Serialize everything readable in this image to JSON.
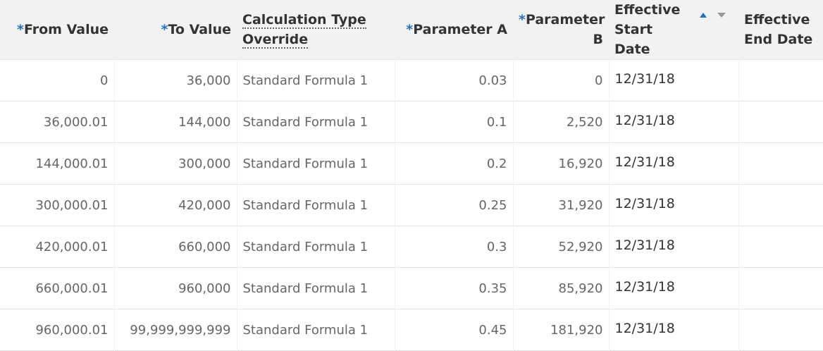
{
  "table": {
    "columns": [
      {
        "marker": "*",
        "label": "From Value"
      },
      {
        "marker": "*",
        "label": "To Value"
      },
      {
        "label": "Calculation Type Override"
      },
      {
        "marker": "*",
        "label": "Parameter A"
      },
      {
        "marker": "*",
        "label": "Parameter B"
      },
      {
        "label": "Effective Start Date"
      },
      {
        "label": "Effective End Date"
      }
    ],
    "rows": [
      [
        "0",
        "36,000",
        "Standard Formula 1",
        "0.03",
        "0",
        "12/31/18"
      ],
      [
        "36,000.01",
        "144,000",
        "Standard Formula 1",
        "0.1",
        "2,520",
        "12/31/18"
      ],
      [
        "144,000.01",
        "300,000",
        "Standard Formula 1",
        "0.2",
        "16,920",
        "12/31/18"
      ],
      [
        "300,000.01",
        "420,000",
        "Standard Formula 1",
        "0.25",
        "31,920",
        "12/31/18"
      ],
      [
        "420,000.01",
        "660,000",
        "Standard Formula 1",
        "0.3",
        "52,920",
        "12/31/18"
      ],
      [
        "660,000.01",
        "960,000",
        "Standard Formula 1",
        "0.35",
        "85,920",
        "12/31/18"
      ],
      [
        "960,000.01",
        "99,999,999,999",
        "Standard Formula 1",
        "0.45",
        "181,920",
        "12/31/18"
      ]
    ]
  }
}
